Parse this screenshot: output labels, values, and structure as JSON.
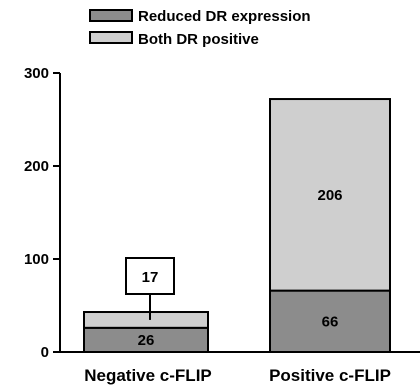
{
  "chart_data": {
    "type": "bar",
    "stacked": true,
    "categories": [
      "Negative c-FLIP",
      "Positive c-FLIP"
    ],
    "series": [
      {
        "name": "Reduced DR expression",
        "values": [
          26,
          66
        ],
        "color": "#8c8c8c"
      },
      {
        "name": "Both DR positive",
        "values": [
          17,
          206
        ],
        "color": "#cfcfcf"
      }
    ],
    "value_labels": [
      "26",
      "17",
      "66",
      "206"
    ],
    "y_ticks": [
      "0",
      "100",
      "200",
      "300"
    ],
    "ylim": [
      0,
      300
    ],
    "legend": "top-left",
    "grid": false
  }
}
